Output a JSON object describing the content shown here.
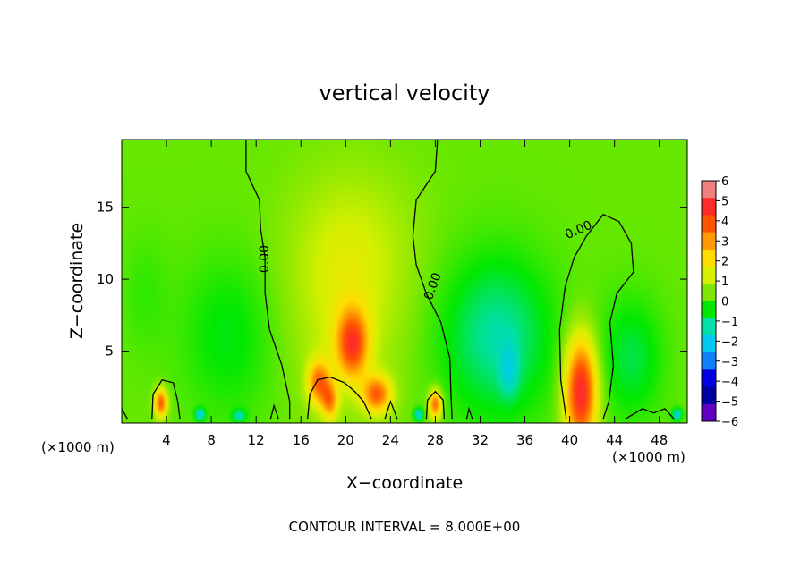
{
  "chart_data": {
    "type": "heatmap",
    "title": "vertical velocity",
    "xlabel": "X−coordinate",
    "ylabel": "Z−coordinate",
    "x_unit": "(×1000 m)",
    "x_unit_right": "(×1000 m)",
    "footer": "CONTOUR INTERVAL = 8.000E+00",
    "xlim": [
      0,
      50.5
    ],
    "ylim": [
      0,
      19.7
    ],
    "x_ticks": [
      4,
      8,
      12,
      16,
      20,
      24,
      28,
      32,
      36,
      40,
      44,
      48
    ],
    "y_ticks": [
      5,
      10,
      15
    ],
    "colorbar": {
      "levels": [
        6,
        5,
        4,
        3,
        2,
        1,
        0,
        -1,
        -2,
        -3,
        -4,
        -5,
        -6
      ],
      "labels": [
        "6",
        "5",
        "4",
        "3",
        "2",
        "1",
        "0",
        "−1",
        "−2",
        "−3",
        "−4",
        "−5",
        "−6"
      ],
      "colors": [
        "#f08080",
        "#ff2a2a",
        "#ff5500",
        "#ff9900",
        "#ffdd00",
        "#d8f000",
        "#80e800",
        "#00e800",
        "#00e0a8",
        "#00c8f0",
        "#1080ff",
        "#0000e0",
        "#0000a0",
        "#6000c0"
      ]
    },
    "contour_label": "0.00",
    "blobs": [
      {
        "x": 41.0,
        "z": 2.2,
        "w": 5.5,
        "sx": 1.0,
        "sz": 2.6
      },
      {
        "x": 20.6,
        "z": 5.5,
        "w": 4.2,
        "sx": 1.0,
        "sz": 1.7
      },
      {
        "x": 17.6,
        "z": 2.8,
        "w": 3.6,
        "sx": 0.7,
        "sz": 1.1
      },
      {
        "x": 22.8,
        "z": 2.0,
        "w": 3.8,
        "sx": 0.9,
        "sz": 0.9
      },
      {
        "x": 18.6,
        "z": 1.5,
        "w": 3.0,
        "sx": 0.5,
        "sz": 0.9
      },
      {
        "x": 3.5,
        "z": 1.4,
        "w": 4.2,
        "sx": 0.4,
        "sz": 0.7
      },
      {
        "x": 28.0,
        "z": 1.3,
        "w": 4.0,
        "sx": 0.4,
        "sz": 0.7
      },
      {
        "x": 20.0,
        "z": 8.5,
        "w": 1.2,
        "sx": 3.5,
        "sz": 5.0
      },
      {
        "x": 21.0,
        "z": 13.0,
        "w": 0.5,
        "sx": 4.0,
        "sz": 3.5
      },
      {
        "x": 33.5,
        "z": 6.0,
        "w": -1.8,
        "sx": 3.5,
        "sz": 4.0
      },
      {
        "x": 34.6,
        "z": 3.6,
        "w": -1.2,
        "sx": 0.6,
        "sz": 1.3
      },
      {
        "x": 9.5,
        "z": 6.0,
        "w": -0.9,
        "sx": 3.0,
        "sz": 4.0
      },
      {
        "x": 45.5,
        "z": 4.5,
        "w": -1.2,
        "sx": 2.0,
        "sz": 3.0
      },
      {
        "x": 2.0,
        "z": 9.0,
        "w": -0.4,
        "sx": 1.5,
        "sz": 3.0
      },
      {
        "x": 26.5,
        "z": 0.6,
        "w": -2.5,
        "sx": 0.3,
        "sz": 0.3
      },
      {
        "x": 7.0,
        "z": 0.6,
        "w": -2.5,
        "sx": 0.3,
        "sz": 0.3
      },
      {
        "x": 49.6,
        "z": 0.6,
        "w": -2.5,
        "sx": 0.3,
        "sz": 0.3
      },
      {
        "x": 10.5,
        "z": 0.5,
        "w": -1.8,
        "sx": 0.4,
        "sz": 0.3
      }
    ],
    "contours": [
      [
        [
          11.1,
          19.7
        ],
        [
          11.1,
          17.5
        ],
        [
          12.3,
          15.5
        ],
        [
          12.4,
          13.5
        ],
        [
          12.8,
          11.5
        ],
        [
          12.8,
          9.0
        ],
        [
          13.2,
          6.5
        ],
        [
          14.3,
          4.0
        ],
        [
          15.0,
          1.5
        ],
        [
          15.0,
          0.3
        ]
      ],
      [
        [
          28.2,
          19.7
        ],
        [
          28.0,
          17.5
        ],
        [
          26.3,
          15.5
        ],
        [
          26.0,
          13.0
        ],
        [
          26.3,
          11.0
        ],
        [
          27.2,
          9.0
        ],
        [
          28.5,
          7.0
        ],
        [
          29.3,
          4.5
        ],
        [
          29.4,
          2.0
        ],
        [
          29.5,
          0.3
        ]
      ],
      [
        [
          39.7,
          0.3
        ],
        [
          39.2,
          3.0
        ],
        [
          39.1,
          6.5
        ],
        [
          39.6,
          9.5
        ],
        [
          40.4,
          11.5
        ],
        [
          41.5,
          13.0
        ],
        [
          43.0,
          14.5
        ],
        [
          44.4,
          14.0
        ],
        [
          45.5,
          12.5
        ],
        [
          45.7,
          10.5
        ],
        [
          44.2,
          9.0
        ],
        [
          43.6,
          7.0
        ],
        [
          43.9,
          4.0
        ],
        [
          43.5,
          1.5
        ],
        [
          43.0,
          0.3
        ]
      ],
      [
        [
          2.7,
          0.3
        ],
        [
          2.8,
          2.0
        ],
        [
          3.6,
          3.0
        ],
        [
          4.6,
          2.8
        ],
        [
          5.0,
          1.5
        ],
        [
          5.2,
          0.3
        ]
      ],
      [
        [
          16.6,
          0.3
        ],
        [
          16.8,
          2.0
        ],
        [
          17.5,
          3.0
        ],
        [
          18.6,
          3.2
        ],
        [
          19.9,
          2.8
        ],
        [
          20.8,
          2.2
        ],
        [
          21.6,
          1.5
        ],
        [
          22.3,
          0.3
        ]
      ],
      [
        [
          27.2,
          0.3
        ],
        [
          27.3,
          1.6
        ],
        [
          28.0,
          2.2
        ],
        [
          28.7,
          1.6
        ],
        [
          28.8,
          0.3
        ]
      ],
      [
        [
          23.5,
          0.3
        ],
        [
          24.0,
          1.5
        ],
        [
          24.6,
          0.3
        ]
      ],
      [
        [
          45.0,
          0.3
        ],
        [
          46.5,
          1.0
        ],
        [
          47.5,
          0.7
        ],
        [
          48.5,
          1.0
        ],
        [
          49.3,
          0.3
        ]
      ],
      [
        [
          0.0,
          1.0
        ],
        [
          0.5,
          0.3
        ]
      ],
      [
        [
          13.3,
          0.3
        ],
        [
          13.6,
          1.2
        ],
        [
          14.0,
          0.3
        ]
      ],
      [
        [
          30.8,
          0.3
        ],
        [
          31.0,
          1.0
        ],
        [
          31.3,
          0.3
        ]
      ]
    ],
    "contour_labels": [
      {
        "x": 12.8,
        "z": 11.4,
        "angle": -90
      },
      {
        "x": 27.8,
        "z": 9.5,
        "angle": -70
      },
      {
        "x": 40.8,
        "z": 13.4,
        "angle": -24
      }
    ]
  }
}
